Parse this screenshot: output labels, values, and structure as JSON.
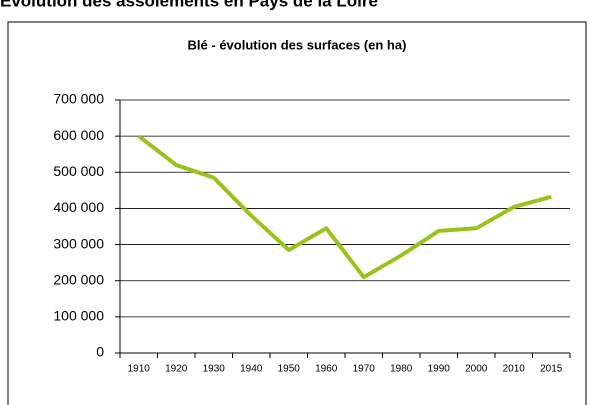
{
  "heading": "Évolution des assolements en Pays de la Loire",
  "chart_data": {
    "type": "line",
    "title": "Blé - évolution des surfaces (en ha)",
    "categories": [
      "1910",
      "1920",
      "1930",
      "1940",
      "1950",
      "1960",
      "1970",
      "1980",
      "1990",
      "2000",
      "2010",
      "2015"
    ],
    "series": [
      {
        "name": "Blé",
        "color": "#99c31c",
        "values": [
          600000,
          520000,
          485000,
          380000,
          285000,
          345000,
          210000,
          270000,
          338000,
          345000,
          404000,
          432000
        ]
      }
    ],
    "ylim": [
      0,
      700000
    ],
    "yticks": [
      0,
      {
        "value": 100000,
        "label": "100 000"
      },
      {
        "value": 200000,
        "label": "200 000"
      },
      {
        "value": 300000,
        "label": "300 000"
      },
      {
        "value": 400000,
        "label": "400 000"
      },
      {
        "value": 500000,
        "label": "500 000"
      },
      {
        "value": 600000,
        "label": "600 000"
      },
      {
        "value": 700000,
        "label": "700 000"
      }
    ],
    "grid": true
  }
}
